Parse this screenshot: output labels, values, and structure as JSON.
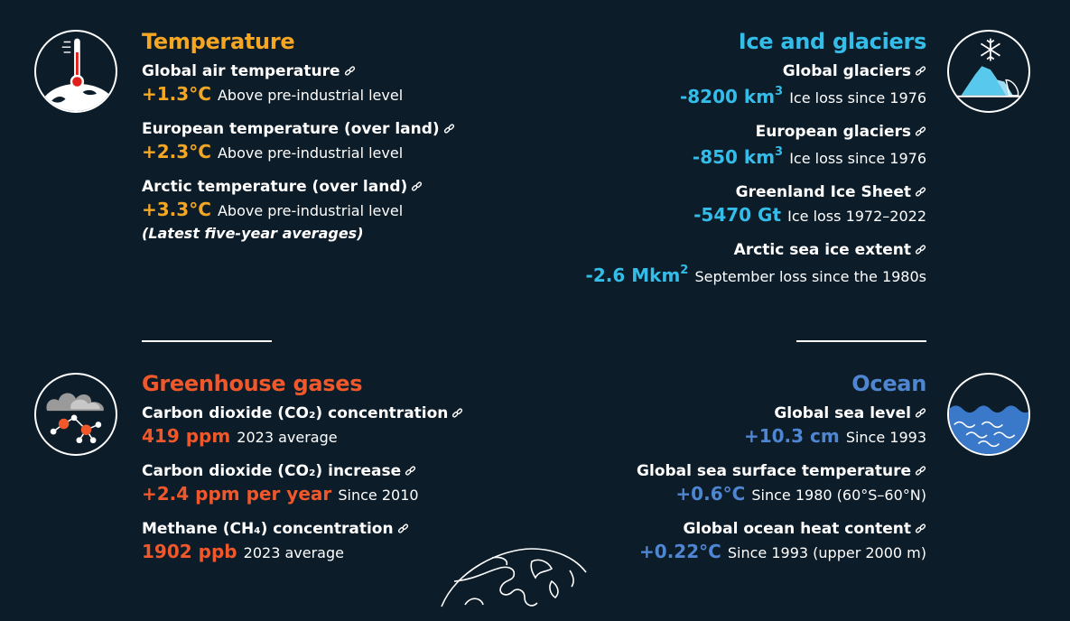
{
  "temperature": {
    "title": "Temperature",
    "icon": "thermometer-globe-icon",
    "color": "#f5a623",
    "items": [
      {
        "title": "Global air temperature",
        "value": "+1.3°C",
        "desc": "Above pre-industrial level"
      },
      {
        "title": "European temperature (over land)",
        "value": "+2.3°C",
        "desc": "Above pre-industrial level"
      },
      {
        "title": "Arctic temperature (over land)",
        "value": "+3.3°C",
        "desc": "Above pre-industrial level"
      }
    ],
    "note": "(Latest five-year averages)"
  },
  "ice": {
    "title": "Ice and glaciers",
    "icon": "iceberg-snowflake-icon",
    "color": "#33bde8",
    "items": [
      {
        "title": "Global glaciers",
        "value": "-8200 km",
        "sup": "3",
        "desc": "Ice loss since 1976"
      },
      {
        "title": "European glaciers",
        "value": "-850 km",
        "sup": "3",
        "desc": "Ice loss since 1976"
      },
      {
        "title": "Greenland Ice Sheet",
        "value": "-5470 Gt",
        "desc": "Ice loss 1972–2022"
      },
      {
        "title": "Arctic sea ice extent",
        "value": "-2.6 Mkm",
        "sup": "2",
        "desc": "September loss since the 1980s"
      }
    ]
  },
  "ghg": {
    "title": "Greenhouse gases",
    "icon": "cloud-molecule-icon",
    "color": "#f0582b",
    "items": [
      {
        "title": "Carbon dioxide (CO₂) concentration",
        "value": "419 ppm",
        "desc": "2023 average"
      },
      {
        "title": "Carbon dioxide (CO₂) increase",
        "value": "+2.4 ppm per year",
        "desc": "Since 2010"
      },
      {
        "title": "Methane (CH₄) concentration",
        "value": "1902 ppb",
        "desc": "2023 average"
      }
    ]
  },
  "ocean": {
    "title": "Ocean",
    "icon": "waves-icon",
    "color": "#4f86d2",
    "items": [
      {
        "title": "Global sea level",
        "value": "+10.3 cm",
        "desc": "Since 1993"
      },
      {
        "title": "Global sea surface temperature",
        "value": "+0.6°C",
        "desc": "Since 1980 (60°S–60°N)"
      },
      {
        "title": "Global ocean heat content",
        "value": "+0.22°C",
        "desc": "Since 1993 (upper 2000 m)"
      }
    ]
  }
}
